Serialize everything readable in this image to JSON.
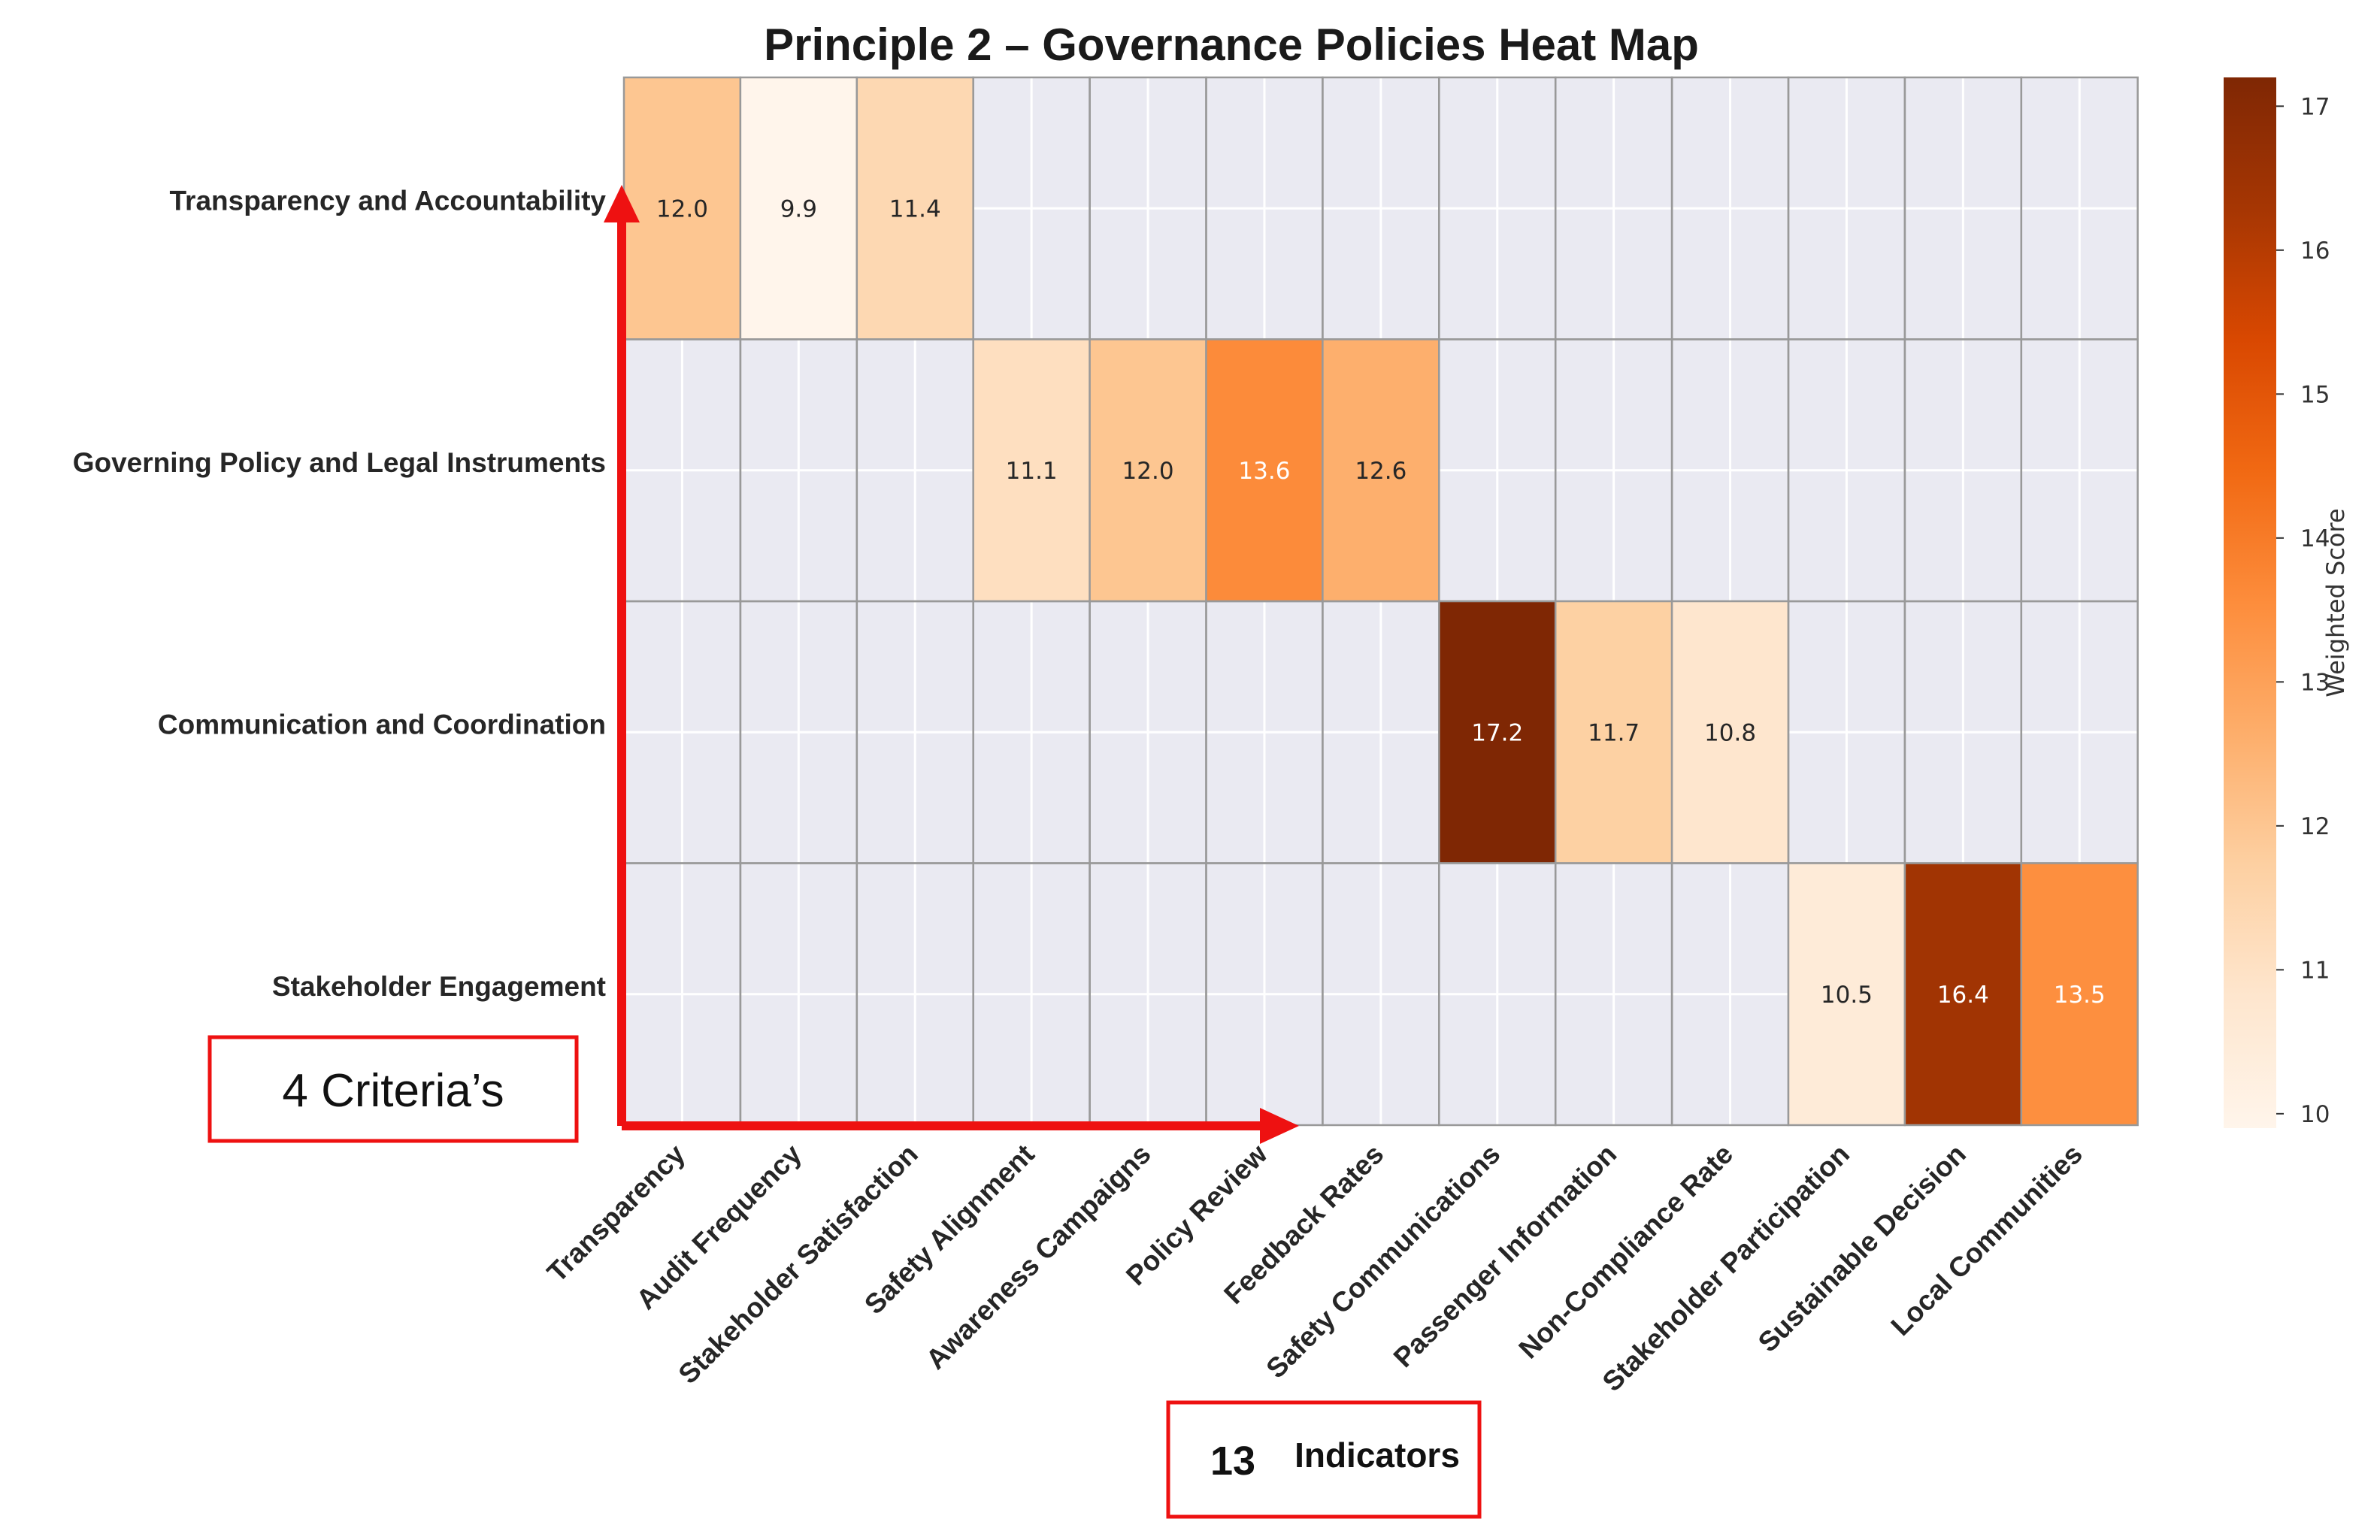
{
  "chart_data": {
    "type": "heatmap",
    "title": "Principle 2 – Governance Policies Heat Map",
    "rows": [
      "Transparency and Accountability",
      "Governing Policy and Legal Instruments",
      "Communication and Coordination",
      "Stakeholder Engagement"
    ],
    "columns": [
      "Transparency",
      "Audit Frequency",
      "Stakeholder Satisfaction",
      "Safety Alignment",
      "Awareness Campaigns",
      "Policy Review",
      "Feedback Rates",
      "Safety Communications",
      "Passenger Information",
      "Non-Compliance Rate",
      "Stakeholder Participation",
      "Sustainable Decision",
      "Local Communities"
    ],
    "values": [
      [
        12.0,
        9.9,
        11.4,
        null,
        null,
        null,
        null,
        null,
        null,
        null,
        null,
        null,
        null
      ],
      [
        null,
        null,
        null,
        11.1,
        12.0,
        13.6,
        12.6,
        null,
        null,
        null,
        null,
        null,
        null
      ],
      [
        null,
        null,
        null,
        null,
        null,
        null,
        null,
        17.2,
        11.7,
        10.8,
        null,
        null,
        null
      ],
      [
        null,
        null,
        null,
        null,
        null,
        null,
        null,
        null,
        null,
        null,
        10.5,
        16.4,
        13.5
      ]
    ],
    "value_labels": [
      [
        "12.0",
        "9.9",
        "11.4",
        "",
        "",
        "",
        "",
        "",
        "",
        "",
        "",
        "",
        ""
      ],
      [
        "",
        "",
        "",
        "11.1",
        "12.0",
        "13.6",
        "12.6",
        "",
        "",
        "",
        "",
        "",
        ""
      ],
      [
        "",
        "",
        "",
        "",
        "",
        "",
        "",
        "17.2",
        "11.7",
        "10.8",
        "",
        "",
        ""
      ],
      [
        "",
        "",
        "",
        "",
        "",
        "",
        "",
        "",
        "",
        "",
        "10.5",
        "16.4",
        "13.5"
      ]
    ],
    "colorbar": {
      "label": "Weighted Score",
      "range": [
        9.9,
        17.2
      ],
      "ticks": [
        "10",
        "11",
        "12",
        "13",
        "14",
        "15",
        "16",
        "17"
      ],
      "tick_values": [
        10,
        11,
        12,
        13,
        14,
        15,
        16,
        17
      ],
      "colormap": "Oranges"
    },
    "colors": {
      "empty_cell": "#eaeaf2",
      "grid": "#ffffff",
      "cell_border": "#999999",
      "annotation_red": "#ee1111"
    }
  },
  "annotations": {
    "criteria_box": "4 Criteria’s",
    "indicators_count": "13",
    "indicators_label": "Indicators"
  }
}
